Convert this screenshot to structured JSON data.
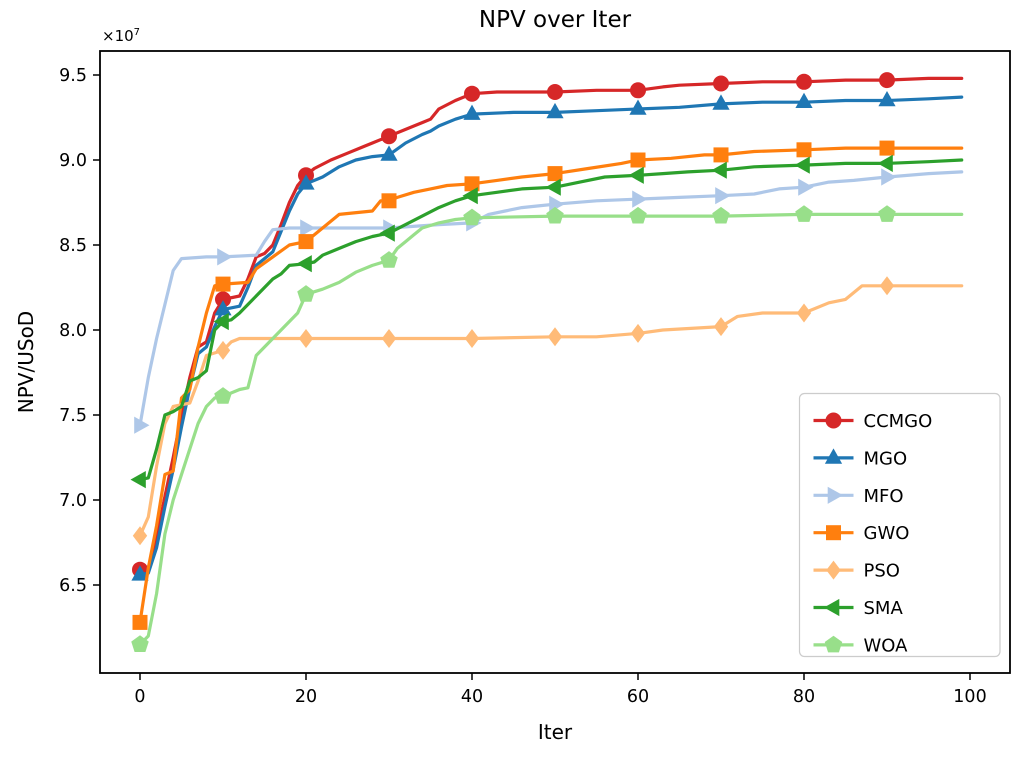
{
  "figure": {
    "title": "NPV over Iter",
    "xlabel": "Iter",
    "ylabel": "NPV/USoD",
    "offset_text": {
      "base": "×10",
      "exp": "7"
    }
  },
  "chart_data": {
    "type": "line",
    "title": "NPV over Iter",
    "xlabel": "Iter",
    "ylabel": "NPV/USoD",
    "y_unit_multiplier": "1e7",
    "xlim": [
      -5,
      105
    ],
    "ylim": [
      5.98,
      9.66
    ],
    "xticks": [
      "0",
      "20",
      "40",
      "60",
      "80",
      "100"
    ],
    "xtick_values": [
      0,
      20,
      40,
      60,
      80,
      100
    ],
    "yticks": [
      "6.5",
      "7.0",
      "7.5",
      "8.0",
      "8.5",
      "9.0",
      "9.5"
    ],
    "ytick_values": [
      6.5,
      7.0,
      7.5,
      8.0,
      8.5,
      9.0,
      9.5
    ],
    "grid": false,
    "legend_position": "lower right",
    "marker_every": 10,
    "marker_x": [
      0,
      10,
      20,
      30,
      40,
      50,
      60,
      70,
      80,
      90
    ],
    "series": [
      {
        "name": "CCMGO",
        "color": "#d62728",
        "marker": "circle",
        "points": [
          [
            0,
            6.59
          ],
          [
            1,
            6.6
          ],
          [
            2,
            6.78
          ],
          [
            3,
            7.02
          ],
          [
            4,
            7.25
          ],
          [
            5,
            7.5
          ],
          [
            6,
            7.72
          ],
          [
            7,
            7.9
          ],
          [
            8,
            7.93
          ],
          [
            9,
            8.1
          ],
          [
            10,
            8.18
          ],
          [
            12,
            8.2
          ],
          [
            13,
            8.3
          ],
          [
            14,
            8.43
          ],
          [
            15,
            8.45
          ],
          [
            16,
            8.5
          ],
          [
            17,
            8.62
          ],
          [
            18,
            8.75
          ],
          [
            19,
            8.85
          ],
          [
            20,
            8.91
          ],
          [
            21,
            8.95
          ],
          [
            23,
            9.0
          ],
          [
            25,
            9.04
          ],
          [
            27,
            9.08
          ],
          [
            28,
            9.1
          ],
          [
            30,
            9.14
          ],
          [
            32,
            9.18
          ],
          [
            34,
            9.22
          ],
          [
            35,
            9.24
          ],
          [
            36,
            9.3
          ],
          [
            38,
            9.35
          ],
          [
            40,
            9.39
          ],
          [
            43,
            9.4
          ],
          [
            50,
            9.4
          ],
          [
            55,
            9.41
          ],
          [
            60,
            9.41
          ],
          [
            63,
            9.43
          ],
          [
            65,
            9.44
          ],
          [
            70,
            9.45
          ],
          [
            75,
            9.46
          ],
          [
            80,
            9.46
          ],
          [
            85,
            9.47
          ],
          [
            90,
            9.47
          ],
          [
            95,
            9.48
          ],
          [
            99,
            9.48
          ]
        ]
      },
      {
        "name": "MGO",
        "color": "#1f77b4",
        "marker": "triangle-up",
        "points": [
          [
            0,
            6.56
          ],
          [
            1,
            6.57
          ],
          [
            2,
            6.72
          ],
          [
            3,
            6.96
          ],
          [
            4,
            7.18
          ],
          [
            5,
            7.43
          ],
          [
            6,
            7.66
          ],
          [
            7,
            7.86
          ],
          [
            8,
            7.9
          ],
          [
            9,
            8.02
          ],
          [
            10,
            8.12
          ],
          [
            12,
            8.14
          ],
          [
            13,
            8.25
          ],
          [
            14,
            8.38
          ],
          [
            15,
            8.42
          ],
          [
            16,
            8.46
          ],
          [
            17,
            8.58
          ],
          [
            18,
            8.7
          ],
          [
            19,
            8.8
          ],
          [
            20,
            8.86
          ],
          [
            22,
            8.9
          ],
          [
            24,
            8.96
          ],
          [
            26,
            9.0
          ],
          [
            28,
            9.02
          ],
          [
            30,
            9.03
          ],
          [
            32,
            9.1
          ],
          [
            34,
            9.15
          ],
          [
            35,
            9.17
          ],
          [
            36,
            9.2
          ],
          [
            38,
            9.24
          ],
          [
            40,
            9.27
          ],
          [
            45,
            9.28
          ],
          [
            50,
            9.28
          ],
          [
            55,
            9.29
          ],
          [
            60,
            9.3
          ],
          [
            65,
            9.31
          ],
          [
            70,
            9.33
          ],
          [
            75,
            9.34
          ],
          [
            80,
            9.34
          ],
          [
            85,
            9.35
          ],
          [
            90,
            9.35
          ],
          [
            95,
            9.36
          ],
          [
            99,
            9.37
          ]
        ]
      },
      {
        "name": "MFO",
        "color": "#aec7e8",
        "marker": "triangle-right",
        "points": [
          [
            0,
            7.44
          ],
          [
            1,
            7.72
          ],
          [
            2,
            7.95
          ],
          [
            3,
            8.15
          ],
          [
            4,
            8.35
          ],
          [
            5,
            8.42
          ],
          [
            8,
            8.43
          ],
          [
            10,
            8.43
          ],
          [
            14,
            8.44
          ],
          [
            15,
            8.52
          ],
          [
            16,
            8.59
          ],
          [
            18,
            8.6
          ],
          [
            20,
            8.6
          ],
          [
            25,
            8.6
          ],
          [
            30,
            8.6
          ],
          [
            36,
            8.62
          ],
          [
            40,
            8.63
          ],
          [
            42,
            8.68
          ],
          [
            44,
            8.7
          ],
          [
            46,
            8.72
          ],
          [
            48,
            8.73
          ],
          [
            50,
            8.74
          ],
          [
            55,
            8.76
          ],
          [
            60,
            8.77
          ],
          [
            65,
            8.78
          ],
          [
            70,
            8.79
          ],
          [
            74,
            8.8
          ],
          [
            77,
            8.83
          ],
          [
            80,
            8.84
          ],
          [
            83,
            8.87
          ],
          [
            86,
            8.88
          ],
          [
            90,
            8.9
          ],
          [
            95,
            8.92
          ],
          [
            99,
            8.93
          ]
        ]
      },
      {
        "name": "GWO",
        "color": "#ff7f0e",
        "marker": "square",
        "points": [
          [
            0,
            6.28
          ],
          [
            1,
            6.6
          ],
          [
            2,
            6.85
          ],
          [
            3,
            7.15
          ],
          [
            4,
            7.17
          ],
          [
            5,
            7.6
          ],
          [
            6,
            7.65
          ],
          [
            7,
            7.9
          ],
          [
            8,
            8.1
          ],
          [
            9,
            8.26
          ],
          [
            10,
            8.27
          ],
          [
            13,
            8.28
          ],
          [
            14,
            8.36
          ],
          [
            16,
            8.43
          ],
          [
            18,
            8.5
          ],
          [
            20,
            8.52
          ],
          [
            22,
            8.6
          ],
          [
            24,
            8.68
          ],
          [
            28,
            8.7
          ],
          [
            29,
            8.76
          ],
          [
            30,
            8.76
          ],
          [
            31,
            8.78
          ],
          [
            33,
            8.81
          ],
          [
            35,
            8.83
          ],
          [
            37,
            8.85
          ],
          [
            40,
            8.86
          ],
          [
            43,
            8.88
          ],
          [
            46,
            8.9
          ],
          [
            50,
            8.92
          ],
          [
            54,
            8.95
          ],
          [
            58,
            8.98
          ],
          [
            60,
            9.0
          ],
          [
            64,
            9.01
          ],
          [
            68,
            9.03
          ],
          [
            70,
            9.03
          ],
          [
            74,
            9.05
          ],
          [
            80,
            9.06
          ],
          [
            85,
            9.07
          ],
          [
            90,
            9.07
          ],
          [
            99,
            9.07
          ]
        ]
      },
      {
        "name": "PSO",
        "color": "#ffbb78",
        "marker": "diamond",
        "points": [
          [
            0,
            6.79
          ],
          [
            1,
            6.9
          ],
          [
            2,
            7.2
          ],
          [
            3,
            7.45
          ],
          [
            4,
            7.55
          ],
          [
            6,
            7.57
          ],
          [
            7,
            7.7
          ],
          [
            8,
            7.85
          ],
          [
            10,
            7.88
          ],
          [
            11,
            7.93
          ],
          [
            12,
            7.95
          ],
          [
            20,
            7.95
          ],
          [
            30,
            7.95
          ],
          [
            40,
            7.95
          ],
          [
            50,
            7.96
          ],
          [
            55,
            7.96
          ],
          [
            60,
            7.98
          ],
          [
            63,
            8.0
          ],
          [
            70,
            8.02
          ],
          [
            72,
            8.08
          ],
          [
            75,
            8.1
          ],
          [
            80,
            8.1
          ],
          [
            83,
            8.16
          ],
          [
            85,
            8.18
          ],
          [
            87,
            8.26
          ],
          [
            90,
            8.26
          ],
          [
            99,
            8.26
          ]
        ]
      },
      {
        "name": "SMA",
        "color": "#2ca02c",
        "marker": "triangle-left",
        "points": [
          [
            0,
            7.12
          ],
          [
            1,
            7.13
          ],
          [
            2,
            7.3
          ],
          [
            3,
            7.5
          ],
          [
            4,
            7.52
          ],
          [
            5,
            7.55
          ],
          [
            6,
            7.7
          ],
          [
            7,
            7.72
          ],
          [
            8,
            7.76
          ],
          [
            9,
            8.0
          ],
          [
            10,
            8.05
          ],
          [
            11,
            8.06
          ],
          [
            12,
            8.1
          ],
          [
            13,
            8.15
          ],
          [
            14,
            8.2
          ],
          [
            15,
            8.25
          ],
          [
            16,
            8.3
          ],
          [
            17,
            8.33
          ],
          [
            18,
            8.38
          ],
          [
            20,
            8.39
          ],
          [
            21,
            8.4
          ],
          [
            22,
            8.44
          ],
          [
            24,
            8.48
          ],
          [
            26,
            8.52
          ],
          [
            28,
            8.55
          ],
          [
            30,
            8.57
          ],
          [
            32,
            8.62
          ],
          [
            34,
            8.67
          ],
          [
            36,
            8.72
          ],
          [
            38,
            8.76
          ],
          [
            40,
            8.79
          ],
          [
            43,
            8.81
          ],
          [
            46,
            8.83
          ],
          [
            50,
            8.84
          ],
          [
            53,
            8.87
          ],
          [
            56,
            8.9
          ],
          [
            60,
            8.91
          ],
          [
            63,
            8.92
          ],
          [
            66,
            8.93
          ],
          [
            70,
            8.94
          ],
          [
            74,
            8.96
          ],
          [
            80,
            8.97
          ],
          [
            85,
            8.98
          ],
          [
            90,
            8.98
          ],
          [
            95,
            8.99
          ],
          [
            99,
            9.0
          ]
        ]
      },
      {
        "name": "WOA",
        "color": "#98df8a",
        "marker": "pentagon",
        "points": [
          [
            0,
            6.15
          ],
          [
            1,
            6.2
          ],
          [
            2,
            6.45
          ],
          [
            3,
            6.8
          ],
          [
            4,
            7.0
          ],
          [
            5,
            7.15
          ],
          [
            6,
            7.3
          ],
          [
            7,
            7.45
          ],
          [
            8,
            7.55
          ],
          [
            9,
            7.6
          ],
          [
            10,
            7.61
          ],
          [
            12,
            7.65
          ],
          [
            13,
            7.66
          ],
          [
            14,
            7.85
          ],
          [
            15,
            7.9
          ],
          [
            16,
            7.95
          ],
          [
            18,
            8.05
          ],
          [
            19,
            8.1
          ],
          [
            20,
            8.21
          ],
          [
            22,
            8.24
          ],
          [
            24,
            8.28
          ],
          [
            26,
            8.34
          ],
          [
            28,
            8.38
          ],
          [
            30,
            8.41
          ],
          [
            31,
            8.48
          ],
          [
            32,
            8.52
          ],
          [
            33,
            8.56
          ],
          [
            34,
            8.6
          ],
          [
            36,
            8.63
          ],
          [
            38,
            8.65
          ],
          [
            40,
            8.66
          ],
          [
            50,
            8.67
          ],
          [
            60,
            8.67
          ],
          [
            70,
            8.67
          ],
          [
            80,
            8.68
          ],
          [
            90,
            8.68
          ],
          [
            99,
            8.68
          ]
        ]
      }
    ],
    "legend_items": [
      "CCMGO",
      "MGO",
      "MFO",
      "GWO",
      "PSO",
      "SMA",
      "WOA"
    ]
  }
}
